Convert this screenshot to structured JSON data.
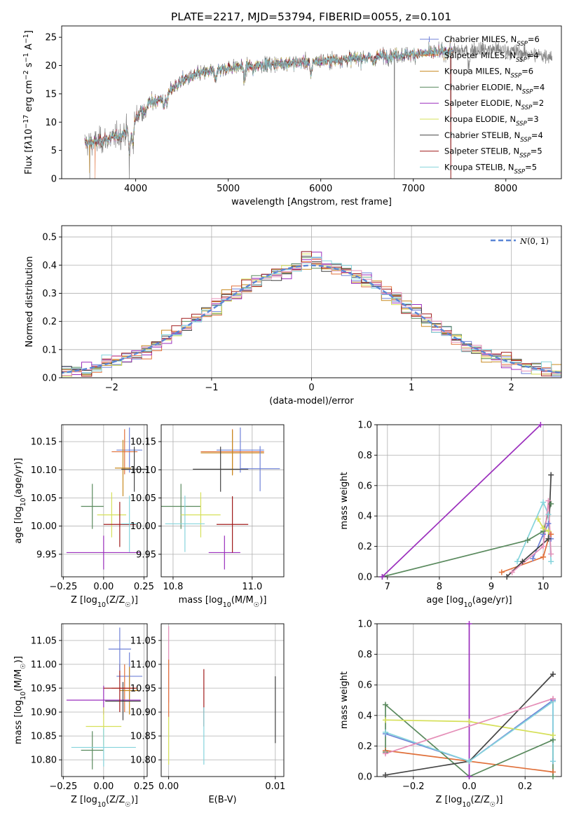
{
  "figure_title": "PLATE=2217, MJD=53794, FIBERID=0055, z=0.101",
  "models": [
    {
      "name": "Chabrier MILES",
      "nssp": "6",
      "color": "#6f82d8"
    },
    {
      "name": "Salpeter MILES",
      "nssp": "4",
      "color": "#e0703a"
    },
    {
      "name": "Kroupa MILES",
      "nssp": "6",
      "color": "#c88a20"
    },
    {
      "name": "Chabrier ELODIE",
      "nssp": "4",
      "color": "#5a8a5e"
    },
    {
      "name": "Salpeter ELODIE",
      "nssp": "2",
      "color": "#9b2fbd"
    },
    {
      "name": "Kroupa ELODIE",
      "nssp": "3",
      "color": "#d6e05a"
    },
    {
      "name": "Chabrier STELIB",
      "nssp": "4",
      "color": "#444444"
    },
    {
      "name": "Salpeter STELIB",
      "nssp": "5",
      "color": "#a01c1c"
    },
    {
      "name": "Kroupa STELIB",
      "nssp": "5",
      "color": "#86d4dc"
    }
  ],
  "chart_data": [
    {
      "id": "spectrum",
      "type": "line",
      "xlabel": "wavelength [Angstrom, rest frame]",
      "ylabel_parts": [
        "Flux [f",
        "λ",
        "10",
        "−17",
        " erg cm",
        "−2",
        " s",
        "−1",
        " A",
        "−1",
        "]"
      ],
      "xlim": [
        3200,
        8600
      ],
      "ylim": [
        0,
        27
      ],
      "xticks": [
        4000,
        5000,
        6000,
        7000,
        8000
      ],
      "yticks": [
        0,
        5,
        10,
        15,
        20,
        25
      ],
      "grid": false,
      "legend": "right",
      "legend_label_suffix": "N_SSP",
      "continuum": {
        "x": [
          3450,
          3550,
          3650,
          3750,
          3850,
          3950,
          4050,
          4150,
          4250,
          4350,
          4500,
          4700,
          4900,
          5100,
          5300,
          5500,
          5700,
          5900,
          6100,
          6300,
          6500,
          6700,
          6900,
          7100,
          7300,
          7500,
          7700,
          7900,
          8100,
          8300,
          8500
        ],
        "y": [
          6.3,
          6.4,
          6.8,
          7.2,
          7.8,
          9.0,
          12.0,
          13.4,
          14.0,
          15.2,
          17.3,
          18.6,
          19.3,
          19.8,
          20.1,
          20.3,
          20.5,
          20.7,
          20.9,
          21.2,
          21.4,
          21.7,
          21.9,
          22.1,
          22.4,
          22.6,
          22.9,
          22.8,
          22.4,
          21.9,
          21.7
        ]
      },
      "absorption_dips": [
        {
          "x": 3934,
          "depth": 4.0
        },
        {
          "x": 3969,
          "depth": 3.0
        },
        {
          "x": 4102,
          "depth": 1.5
        },
        {
          "x": 4304,
          "depth": 2.0
        },
        {
          "x": 4340,
          "depth": 1.5
        },
        {
          "x": 4861,
          "depth": 1.5
        },
        {
          "x": 5175,
          "depth": 2.5
        },
        {
          "x": 5270,
          "depth": 1.2
        },
        {
          "x": 5893,
          "depth": 2.5
        },
        {
          "x": 6563,
          "depth": 1.0
        },
        {
          "x": 7600,
          "depth": 2.5
        }
      ],
      "bad_pixels": [
        {
          "x": 3505,
          "to": 0
        },
        {
          "x": 3930,
          "to": 0
        },
        {
          "x": 6795,
          "to": 0
        },
        {
          "x": 7405,
          "to": 0
        }
      ],
      "model_range": [
        3450,
        7430
      ]
    },
    {
      "id": "residuals",
      "type": "histogram",
      "xlabel": "(data-model)/error",
      "ylabel": "Normed distribution",
      "xlim": [
        -2.5,
        2.5
      ],
      "ylim": [
        0,
        0.54
      ],
      "xticks": [
        -2,
        -1,
        0,
        1,
        2
      ],
      "yticks": [
        0.0,
        0.1,
        0.2,
        0.3,
        0.4,
        0.5
      ],
      "grid": true,
      "bin_width": 0.1,
      "reference_curve": {
        "name": "N(0,1)",
        "style": "dashed",
        "color": "#5b86d6"
      },
      "legend": "top-right"
    },
    {
      "id": "age_vs_Z",
      "type": "scatter",
      "xlabel_parts": [
        "Z [log",
        "10",
        "(Z/Z",
        "☉",
        ")]"
      ],
      "ylabel_parts": [
        "age  [log",
        "10",
        "(age/yr)]"
      ],
      "xlim": [
        -0.26,
        0.27
      ],
      "ylim": [
        9.91,
        10.18
      ],
      "xticks": [
        -0.25,
        0.0,
        0.25
      ],
      "yticks": [
        9.95,
        10.0,
        10.05,
        10.1,
        10.15
      ],
      "grid": true,
      "points": [
        {
          "x": 0.16,
          "xerr": 0.08,
          "y": 10.135,
          "yerr": 0.04
        },
        {
          "x": 0.13,
          "xerr": 0.08,
          "y": 10.132,
          "yerr": 0.04
        },
        {
          "x": 0.12,
          "xerr": 0.05,
          "y": 10.103,
          "yerr": 0.05
        },
        {
          "x": -0.07,
          "xerr": 0.07,
          "y": 10.035,
          "yerr": 0.04
        },
        {
          "x": 0.0,
          "xerr": 0.23,
          "y": 9.953,
          "yerr": 0.03
        },
        {
          "x": 0.05,
          "xerr": 0.09,
          "y": 10.02,
          "yerr": 0.04
        },
        {
          "x": 0.19,
          "xerr": 0.08,
          "y": 10.101,
          "yerr": 0.04
        },
        {
          "x": 0.1,
          "xerr": 0.1,
          "y": 10.003,
          "yerr": 0.04
        },
        {
          "x": 0.16,
          "xerr": 0.05,
          "y": 10.004,
          "yerr": 0.05
        }
      ]
    },
    {
      "id": "age_vs_mass",
      "type": "scatter",
      "xlabel_parts": [
        "mass [log",
        "10",
        "(M/M",
        "☉",
        ")]"
      ],
      "ylabel_parts": [],
      "xlim": [
        10.77,
        11.08
      ],
      "ylim": [
        9.91,
        10.18
      ],
      "xticks": [
        10.8,
        11.0
      ],
      "yticks": [
        9.95,
        10.0,
        10.05,
        10.1,
        10.15
      ],
      "grid": true,
      "points": [
        {
          "x": 10.97,
          "xerr": 0.06,
          "y": 10.135,
          "yerr": 0.04
        },
        {
          "x": 10.95,
          "xerr": 0.08,
          "y": 10.132,
          "yerr": 0.04
        },
        {
          "x": 10.95,
          "xerr": 0.08,
          "y": 10.13,
          "yerr": 0.04
        },
        {
          "x": 10.82,
          "xerr": 0.05,
          "y": 10.035,
          "yerr": 0.04
        },
        {
          "x": 10.93,
          "xerr": 0.04,
          "y": 9.953,
          "yerr": 0.03
        },
        {
          "x": 10.87,
          "xerr": 0.05,
          "y": 10.02,
          "yerr": 0.04
        },
        {
          "x": 10.92,
          "xerr": 0.07,
          "y": 10.101,
          "yerr": 0.04
        },
        {
          "x": 10.95,
          "xerr": 0.04,
          "y": 10.003,
          "yerr": 0.05
        },
        {
          "x": 10.83,
          "xerr": 0.05,
          "y": 10.004,
          "yerr": 0.05
        },
        {
          "x": 11.02,
          "xerr": 0.05,
          "y": 10.102,
          "yerr": 0.04
        }
      ]
    },
    {
      "id": "weight_vs_age",
      "type": "line",
      "xlabel_parts": [
        "age  [log",
        "10",
        "(age/yr)]"
      ],
      "ylabel": "mass weight",
      "xlim": [
        6.8,
        10.35
      ],
      "ylim": [
        0,
        1
      ],
      "xticks": [
        7,
        8,
        9,
        10
      ],
      "yticks": [
        0.0,
        0.2,
        0.4,
        0.6,
        0.8,
        1.0
      ],
      "grid": true,
      "series": [
        {
          "model": 0,
          "x": [
            9.8,
            10.0,
            10.1,
            10.15
          ],
          "y": [
            0.12,
            0.28,
            0.35,
            0.25
          ]
        },
        {
          "model": 1,
          "x": [
            9.2,
            10.0,
            10.1,
            10.15
          ],
          "y": [
            0.03,
            0.13,
            0.25,
            0.28
          ]
        },
        {
          "model": 3,
          "x": [
            6.9,
            9.7,
            10.0,
            10.15
          ],
          "y": [
            0.0,
            0.24,
            0.3,
            0.48
          ]
        },
        {
          "model": 4,
          "x": [
            6.9,
            9.95
          ],
          "y": [
            0.0,
            1.0
          ]
        },
        {
          "model": 5,
          "x": [
            9.9,
            10.0,
            10.1
          ],
          "y": [
            0.38,
            0.32,
            0.3
          ]
        },
        {
          "model": 6,
          "x": [
            9.3,
            9.6,
            10.1,
            10.15
          ],
          "y": [
            0.0,
            0.1,
            0.25,
            0.67
          ]
        },
        {
          "model": 8,
          "x": [
            9.5,
            10.0,
            10.1,
            10.15
          ],
          "y": [
            0.1,
            0.49,
            0.41,
            0.1
          ]
        },
        {
          "x": [
            9.4,
            10.0,
            10.1,
            10.15
          ],
          "y": [
            0.03,
            0.2,
            0.5,
            0.15
          ],
          "color": "#e58fb8"
        }
      ]
    },
    {
      "id": "mass_vs_Z",
      "type": "scatter",
      "xlabel_parts": [
        "Z [log",
        "10",
        "(Z/Z",
        "☉",
        ")]"
      ],
      "ylabel_parts": [
        "mass [log",
        "10",
        "(M/M",
        "☉",
        ")]"
      ],
      "xlim": [
        -0.26,
        0.27
      ],
      "ylim": [
        10.765,
        11.085
      ],
      "xticks": [
        -0.25,
        0.0,
        0.25
      ],
      "yticks": [
        10.8,
        10.85,
        10.9,
        10.95,
        11.0,
        11.05
      ],
      "grid": true,
      "points": [
        {
          "x": 0.16,
          "xerr": 0.08,
          "y": 10.975,
          "yerr": 0.05
        },
        {
          "x": 0.13,
          "xerr": 0.08,
          "y": 10.95,
          "yerr": 0.05
        },
        {
          "x": 0.16,
          "xerr": 0.06,
          "y": 10.945,
          "yerr": 0.05
        },
        {
          "x": -0.07,
          "xerr": 0.07,
          "y": 10.82,
          "yerr": 0.04
        },
        {
          "x": 0.0,
          "xerr": 0.23,
          "y": 10.925,
          "yerr": 0.03
        },
        {
          "x": 0.0,
          "xerr": 0.11,
          "y": 10.87,
          "yerr": 0.04
        },
        {
          "x": 0.12,
          "xerr": 0.11,
          "y": 10.923,
          "yerr": 0.04
        },
        {
          "x": 0.1,
          "xerr": 0.1,
          "y": 10.95,
          "yerr": 0.05
        },
        {
          "x": 0.0,
          "xerr": 0.2,
          "y": 10.826,
          "yerr": 0.04
        },
        {
          "x": 0.1,
          "xerr": 0.07,
          "y": 11.032,
          "yerr": 0.045
        }
      ]
    },
    {
      "id": "mass_vs_EBV",
      "type": "scatter",
      "xlabel": "E(B-V)",
      "ylabel_parts": [],
      "xlim": [
        -0.0007,
        0.0108
      ],
      "ylim": [
        10.765,
        11.085
      ],
      "xticks": [
        0.0,
        0.01
      ],
      "yticks": [
        10.8,
        10.85,
        10.9,
        10.95,
        11.0,
        11.05
      ],
      "grid": true,
      "points": [
        {
          "x": 0.0,
          "xerr": 0,
          "y": 11.0,
          "yerr": 0.08,
          "color": "#e58fb8"
        },
        {
          "x": 0.0,
          "xerr": 0,
          "y": 10.95,
          "yerr": 0.06,
          "model": 1
        },
        {
          "x": 0.0,
          "xerr": 0,
          "y": 10.84,
          "yerr": 0.05,
          "model": 5
        },
        {
          "x": 0.0033,
          "xerr": 0,
          "y": 10.93,
          "yerr": 0.06,
          "model": 7
        },
        {
          "x": 0.0033,
          "xerr": 0,
          "y": 10.85,
          "yerr": 0.06,
          "model": 8
        },
        {
          "x": 0.01,
          "xerr": 0,
          "y": 10.905,
          "yerr": 0.07,
          "model": 6
        }
      ]
    },
    {
      "id": "weight_vs_Z",
      "type": "line",
      "xlabel_parts": [
        "Z [log",
        "10",
        "(Z/Z",
        "☉",
        ")]"
      ],
      "ylabel": "mass weight",
      "xlim": [
        -0.33,
        0.33
      ],
      "ylim": [
        0,
        1
      ],
      "xticks": [
        -0.2,
        0.0,
        0.2
      ],
      "yticks": [
        0.0,
        0.2,
        0.4,
        0.6,
        0.8,
        1.0
      ],
      "grid": true,
      "series": [
        {
          "model": 0,
          "x": [
            -0.3,
            0.0,
            0.3,
            0.3
          ],
          "y": [
            0.28,
            0.1,
            0.5,
            0.1
          ]
        },
        {
          "model": 1,
          "x": [
            -0.3,
            0.3
          ],
          "y": [
            0.17,
            0.03
          ]
        },
        {
          "model": 3,
          "x": [
            -0.3,
            -0.3,
            0.0,
            0.3,
            0.3
          ],
          "y": [
            0.16,
            0.47,
            0.0,
            0.24,
            0.0
          ]
        },
        {
          "model": 4,
          "x": [
            0.0,
            0.0
          ],
          "y": [
            0.0,
            1.0
          ]
        },
        {
          "model": 5,
          "x": [
            -0.3,
            0.0,
            0.3
          ],
          "y": [
            0.37,
            0.36,
            0.27
          ]
        },
        {
          "model": 6,
          "x": [
            -0.3,
            0.0,
            0.3
          ],
          "y": [
            0.01,
            0.1,
            0.67
          ]
        },
        {
          "model": 8,
          "x": [
            -0.3,
            0.0,
            0.3,
            0.3
          ],
          "y": [
            0.29,
            0.1,
            0.49,
            0.1
          ]
        },
        {
          "x": [
            -0.3,
            0.3
          ],
          "y": [
            0.15,
            0.51
          ],
          "color": "#e58fb8"
        }
      ]
    }
  ]
}
